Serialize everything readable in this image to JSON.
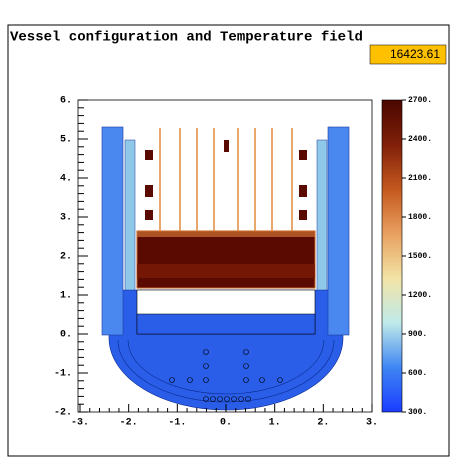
{
  "chart_data": {
    "type": "field",
    "title": "Vessel configuration and Temperature field",
    "annotation": "16423.61",
    "xlim": [
      -3,
      3
    ],
    "xticks": [
      {
        "value": -3,
        "label": "-3."
      },
      {
        "value": -2,
        "label": "-2."
      },
      {
        "value": -1,
        "label": "-1."
      },
      {
        "value": 0,
        "label": "0."
      },
      {
        "value": 1,
        "label": "1."
      },
      {
        "value": 2,
        "label": "2."
      },
      {
        "value": 3,
        "label": "3."
      }
    ],
    "ylim": [
      -2,
      6
    ],
    "yticks": [
      {
        "value": -2,
        "label": "-2."
      },
      {
        "value": -1,
        "label": "-1."
      },
      {
        "value": 0,
        "label": "0."
      },
      {
        "value": 1,
        "label": "1."
      },
      {
        "value": 2,
        "label": "2."
      },
      {
        "value": 3,
        "label": "3."
      },
      {
        "value": 4,
        "label": "4."
      },
      {
        "value": 5,
        "label": "5."
      },
      {
        "value": 6,
        "label": "6."
      }
    ],
    "colorbar": {
      "lim": [
        300,
        2700
      ],
      "ticks": [
        {
          "value": 300,
          "label": "300."
        },
        {
          "value": 600,
          "label": "600."
        },
        {
          "value": 900,
          "label": "900."
        },
        {
          "value": 1200,
          "label": "1200."
        },
        {
          "value": 1500,
          "label": "1500."
        },
        {
          "value": 1800,
          "label": "1800."
        },
        {
          "value": 2100,
          "label": "2100."
        },
        {
          "value": 2400,
          "label": "2400."
        },
        {
          "value": 2700,
          "label": "2700."
        }
      ],
      "colors": [
        "#1a3cff",
        "#3f86f2",
        "#bfeaea",
        "#f2e4a6",
        "#e8a060",
        "#c4581e",
        "#80200a",
        "#4a0600"
      ]
    }
  }
}
